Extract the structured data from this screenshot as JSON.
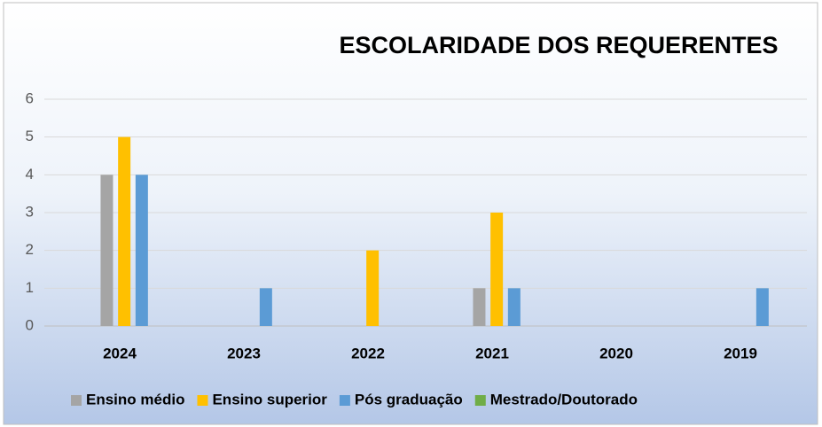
{
  "chart_data": {
    "type": "bar",
    "title": "ESCOLARIDADE DOS REQUERENTES",
    "categories": [
      "2024",
      "2023",
      "2022",
      "2021",
      "2020",
      "2019"
    ],
    "series": [
      {
        "name": "Ensino médio",
        "color": "#a5a5a5",
        "values": [
          4,
          0,
          0,
          1,
          0,
          0
        ]
      },
      {
        "name": "Ensino superior",
        "color": "#ffc000",
        "values": [
          5,
          0,
          2,
          3,
          0,
          0
        ]
      },
      {
        "name": "Pós graduação",
        "color": "#5b9bd5",
        "values": [
          4,
          1,
          0,
          1,
          0,
          1
        ]
      },
      {
        "name": "Mestrado/Doutorado",
        "color": "#70ad47",
        "values": [
          0,
          0,
          0,
          0,
          0,
          0
        ]
      }
    ],
    "ylim": [
      0,
      6
    ],
    "yticks": [
      0,
      1,
      2,
      3,
      4,
      5,
      6
    ],
    "grid": true,
    "legend": "bottom"
  }
}
